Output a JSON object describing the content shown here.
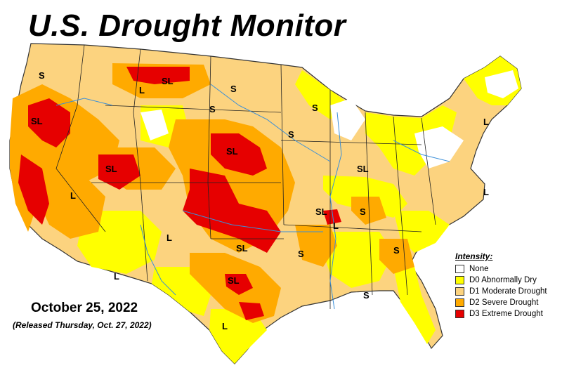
{
  "title": "U.S. Drought Monitor",
  "date": "October 25, 2022",
  "released": "(Released Thursday, Oct. 27, 2022)",
  "legend": {
    "title": "Intensity:",
    "items": [
      {
        "label": "None",
        "color": "#ffffff"
      },
      {
        "label": "D0 Abnormally Dry",
        "color": "#ffff00"
      },
      {
        "label": "D1 Moderate Drought",
        "color": "#fcd37f"
      },
      {
        "label": "D2 Severe Drought",
        "color": "#ffaa00"
      },
      {
        "label": "D3 Extreme Drought",
        "color": "#e60000"
      }
    ]
  },
  "impact_labels": [
    "S",
    "SL",
    "L",
    "SL",
    "S",
    "SL",
    "L",
    "SL",
    "S",
    "SL",
    "S",
    "SL",
    "S",
    "L",
    "L",
    "SL",
    "L",
    "S",
    "SL",
    "S",
    "L",
    "L",
    "L",
    "S",
    "S"
  ]
}
